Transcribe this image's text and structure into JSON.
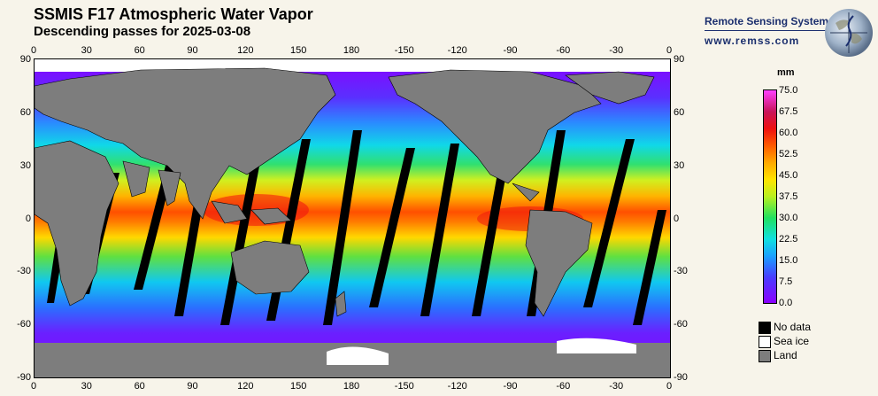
{
  "header": {
    "title": "SSMIS F17 Atmospheric Water Vapor",
    "subtitle": "Descending passes for 2025-03-08"
  },
  "brand": {
    "name": "Remote Sensing Systems",
    "url": "www.remss.com",
    "globe_icon": "globe-icon"
  },
  "map": {
    "lon_ticks": [
      "0",
      "30",
      "60",
      "90",
      "120",
      "150",
      "180",
      "-150",
      "-120",
      "-90",
      "-60",
      "-30",
      "0"
    ],
    "lat_ticks": [
      "90",
      "60",
      "30",
      "0",
      "-30",
      "-60",
      "-90"
    ],
    "colors": {
      "land": "#7d7d7d",
      "no_data": "#000000",
      "sea_ice": "#ffffff"
    }
  },
  "colorbar": {
    "unit": "mm",
    "labels": [
      "75.0",
      "67.5",
      "60.0",
      "52.5",
      "45.0",
      "37.5",
      "30.0",
      "22.5",
      "15.0",
      "7.5",
      "0.0"
    ]
  },
  "legend": [
    {
      "label": "No data",
      "color": "#000000"
    },
    {
      "label": "Sea ice",
      "color": "#ffffff"
    },
    {
      "label": "Land",
      "color": "#7d7d7d"
    }
  ]
}
